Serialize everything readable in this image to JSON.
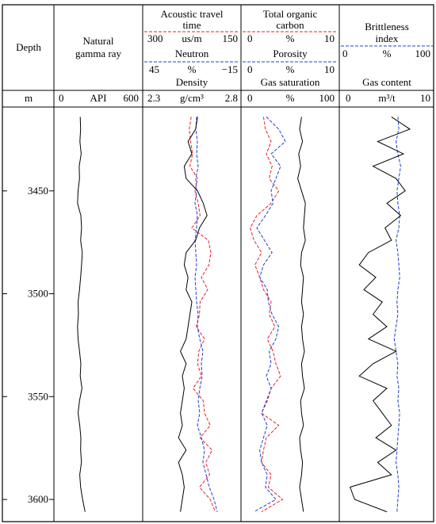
{
  "header": {
    "depth_label": "Depth",
    "depth_unit": "m",
    "track1": {
      "curve1": {
        "label_lines": [
          "Natural",
          "gamma ray"
        ],
        "unit": "API",
        "min": "0",
        "max": "600"
      }
    },
    "track2": {
      "curve1": {
        "label_lines": [
          "Acoustic travel",
          "time"
        ],
        "unit": "us/m",
        "min": "300",
        "max": "150"
      },
      "curve2": {
        "label": "Neutron",
        "unit": "%",
        "min": "45",
        "max": "−15"
      },
      "curve3": {
        "label": "Density",
        "unit": "g/cm³",
        "min": "2.3",
        "max": "2.8"
      }
    },
    "track3": {
      "curve1": {
        "label_lines": [
          "Total organic",
          "carbon"
        ],
        "unit": "%",
        "min": "0",
        "max": "10"
      },
      "curve2": {
        "label": "Porosity",
        "unit": "%",
        "min": "0",
        "max": "10"
      },
      "curve3": {
        "label": "Gas saturation",
        "unit": "%",
        "min": "0",
        "max": "100"
      }
    },
    "track4": {
      "curve1": {
        "label_lines": [
          "Brittleness",
          "index"
        ],
        "unit": "%",
        "min": "0",
        "max": "100"
      },
      "curve3": {
        "label": "Gas content",
        "unit": "m³/t",
        "min": "0",
        "max": "10"
      }
    }
  },
  "colors": {
    "black": "#000000",
    "red": "#e8202a",
    "blue": "#1f3fd0"
  },
  "chart_data": {
    "type": "line",
    "depth_ticks": [
      "3450",
      "3500",
      "3550",
      "3600"
    ],
    "depth": [
      3414,
      3420,
      3426,
      3432,
      3438,
      3444,
      3450,
      3456,
      3462,
      3468,
      3474,
      3480,
      3486,
      3492,
      3498,
      3504,
      3510,
      3516,
      3522,
      3528,
      3534,
      3540,
      3546,
      3552,
      3558,
      3564,
      3570,
      3576,
      3582,
      3588,
      3594,
      3600,
      3606
    ],
    "depth_range": [
      3410,
      3610
    ],
    "series": [
      {
        "name": "Natural gamma ray",
        "track": 1,
        "color": "black",
        "dashed": false,
        "range": [
          0,
          600
        ],
        "values": [
          165,
          168,
          163,
          172,
          158,
          160,
          150,
          146,
          170,
          175,
          168,
          180,
          175,
          168,
          160,
          150,
          152,
          146,
          150,
          160,
          170,
          165,
          178,
          160,
          150,
          162,
          170,
          168,
          174,
          162,
          168,
          182,
          200
        ]
      },
      {
        "name": "Acoustic travel time",
        "track": 2,
        "color": "red",
        "dashed": true,
        "range": [
          300,
          150
        ],
        "values": [
          226,
          229,
          227,
          224,
          228,
          216,
          220,
          215,
          212,
          225,
          199,
          195,
          198,
          210,
          200,
          212,
          213,
          218,
          205,
          214,
          216,
          210,
          223,
          207,
          205,
          196,
          212,
          193,
          203,
          197,
          213,
          196,
          188
        ]
      },
      {
        "name": "Neutron",
        "track": 2,
        "color": "blue",
        "dashed": true,
        "range": [
          45,
          -15
        ],
        "values": [
          12,
          12.5,
          11.5,
          12,
          11,
          12.5,
          12,
          13,
          11.5,
          12,
          13,
          12.5,
          12,
          13,
          12.5,
          12,
          11,
          11.5,
          10,
          8,
          9,
          8.5,
          10,
          11,
          10,
          11.5,
          9,
          7,
          8,
          6,
          4,
          1,
          -1
        ]
      },
      {
        "name": "Density",
        "track": 2,
        "color": "black",
        "dashed": false,
        "range": [
          2.3,
          2.8
        ],
        "values": [
          2.58,
          2.57,
          2.53,
          2.55,
          2.51,
          2.52,
          2.58,
          2.61,
          2.63,
          2.59,
          2.57,
          2.52,
          2.51,
          2.53,
          2.52,
          2.55,
          2.54,
          2.53,
          2.52,
          2.49,
          2.52,
          2.5,
          2.51,
          2.5,
          2.49,
          2.5,
          2.48,
          2.52,
          2.48,
          2.5,
          2.51,
          2.5,
          2.49
        ]
      },
      {
        "name": "Total organic carbon",
        "track": 3,
        "color": "red",
        "dashed": true,
        "range": [
          0,
          10
        ],
        "values": [
          2.2,
          2.4,
          3.0,
          2.5,
          3.1,
          2.8,
          3.8,
          3.0,
          1.5,
          0.8,
          1.2,
          2.0,
          1.3,
          1.8,
          2.2,
          3.0,
          2.8,
          3.4,
          2.6,
          3.2,
          3.5,
          4.0,
          3.0,
          2.6,
          2.0,
          3.8,
          2.5,
          2.2,
          2.0,
          3.0,
          2.7,
          4.2,
          2.0
        ]
      },
      {
        "name": "Porosity",
        "track": 3,
        "color": "blue",
        "dashed": true,
        "range": [
          0,
          10
        ],
        "values": [
          2.5,
          3.8,
          4.5,
          3.0,
          4.0,
          3.5,
          3.0,
          3.2,
          2.4,
          1.5,
          2.3,
          3.1,
          2.2,
          1.8,
          2.6,
          2.7,
          3.1,
          3.8,
          3.5,
          2.8,
          3.0,
          2.5,
          3.0,
          2.5,
          2.0,
          2.6,
          2.2,
          1.8,
          2.0,
          2.6,
          2.4,
          3.5,
          1.2
        ]
      },
      {
        "name": "Gas saturation",
        "track": 3,
        "color": "black",
        "dashed": false,
        "range": [
          0,
          100
        ],
        "values": [
          62,
          60,
          63,
          59,
          61,
          58,
          62,
          66,
          65,
          64,
          66,
          62,
          61,
          64,
          63,
          62,
          64,
          62,
          63,
          65,
          62,
          63,
          65,
          61,
          62,
          64,
          60,
          61,
          63,
          62,
          60,
          62,
          64
        ]
      },
      {
        "name": "Brittleness index",
        "track": 4,
        "color": "blue",
        "dashed": true,
        "range": [
          0,
          100
        ],
        "values": [
          62,
          63,
          60,
          62,
          65,
          63,
          61,
          62,
          64,
          63,
          60,
          62,
          63,
          64,
          62,
          61,
          62,
          60,
          58,
          60,
          62,
          61,
          63,
          62,
          64,
          63,
          62,
          61,
          60,
          62,
          63,
          62,
          61
        ]
      },
      {
        "name": "Gas content",
        "track": 4,
        "color": "black",
        "dashed": false,
        "range": [
          0,
          10
        ],
        "values": [
          5.5,
          7.5,
          4.0,
          6.8,
          3.5,
          6.0,
          7.0,
          5.0,
          6.5,
          4.8,
          5.5,
          3.0,
          2.0,
          3.8,
          2.5,
          4.5,
          3.5,
          5.0,
          3.0,
          6.0,
          3.5,
          2.0,
          5.0,
          3.5,
          4.5,
          5.5,
          3.8,
          6.0,
          4.0,
          5.5,
          1.0,
          1.5,
          5.0
        ]
      }
    ]
  }
}
